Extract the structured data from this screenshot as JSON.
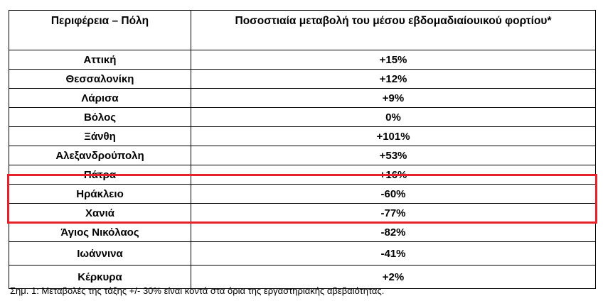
{
  "table": {
    "headers": [
      "Περιφέρεια – Πόλη",
      "Ποσοστιαία μεταβολή του μέσου εβδομαδιαίουικού φορτίου*"
    ],
    "rows": [
      {
        "city": "Αττική",
        "change": "+15%"
      },
      {
        "city": "Θεσσαλονίκη",
        "change": "+12%"
      },
      {
        "city": "Λάρισα",
        "change": "+9%"
      },
      {
        "city": "Βόλος",
        "change": "0%"
      },
      {
        "city": "Ξάνθη",
        "change": "+101%"
      },
      {
        "city": "Αλεξανδρούπολη",
        "change": "+53%"
      },
      {
        "city": "Πάτρα",
        "change": "+16%"
      },
      {
        "city": "Ηράκλειο",
        "change": "-60%"
      },
      {
        "city": "Χανιά",
        "change": "-77%"
      },
      {
        "city": "Άγιος Νικόλαος",
        "change": "-82%"
      },
      {
        "city": "Ιωάννινα",
        "change": "-41%"
      },
      {
        "city": "Κέρκυρα",
        "change": "+2%"
      }
    ]
  },
  "note": "Σημ. 1: Μεταβολές της τάξης +/- 30% είναι κοντά στα όρια της εργαστηριακής αβεβαιότητας.",
  "highlight_color": "#e8202a"
}
